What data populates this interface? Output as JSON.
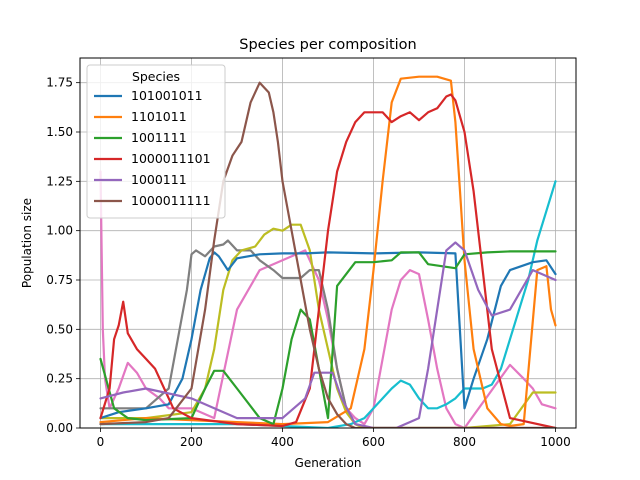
{
  "chart_data": {
    "type": "line",
    "title": "Species per composition",
    "xlabel": "Generation",
    "ylabel": "Population size",
    "xlim": [
      -45,
      1045
    ],
    "ylim": [
      0,
      1.875
    ],
    "xticks": [
      0,
      200,
      400,
      600,
      800,
      1000
    ],
    "xtick_labels": [
      "0",
      "200",
      "400",
      "600",
      "800",
      "1000"
    ],
    "yticks": [
      0,
      0.25,
      0.5,
      0.75,
      1.0,
      1.25,
      1.5,
      1.75
    ],
    "ytick_labels": [
      "0.00",
      "0.25",
      "0.50",
      "0.75",
      "1.00",
      "1.25",
      "1.50",
      "1.75"
    ],
    "grid": true,
    "legend": {
      "title": "Species",
      "position": "upper-left"
    },
    "series": [
      {
        "name": "101001011",
        "color": "#1f77b4",
        "in_legend": true,
        "x": [
          0,
          40,
          100,
          150,
          180,
          200,
          220,
          240,
          250,
          260,
          280,
          300,
          350,
          400,
          450,
          500,
          600,
          700,
          780,
          800,
          820,
          850,
          880,
          900,
          950,
          980,
          1000
        ],
        "y": [
          0.05,
          0.08,
          0.1,
          0.12,
          0.25,
          0.45,
          0.7,
          0.86,
          0.89,
          0.87,
          0.8,
          0.86,
          0.88,
          0.885,
          0.885,
          0.89,
          0.885,
          0.89,
          0.885,
          0.1,
          0.25,
          0.45,
          0.72,
          0.8,
          0.84,
          0.85,
          0.78
        ]
      },
      {
        "name": "1101011",
        "color": "#ff7f0e",
        "in_legend": true,
        "x": [
          0,
          100,
          200,
          300,
          400,
          500,
          550,
          580,
          600,
          620,
          640,
          660,
          700,
          740,
          770,
          780,
          790,
          800,
          820,
          850,
          880,
          900,
          930,
          960,
          980,
          990,
          1000
        ],
        "y": [
          0.03,
          0.05,
          0.04,
          0.03,
          0.02,
          0.03,
          0.1,
          0.4,
          0.8,
          1.25,
          1.65,
          1.77,
          1.78,
          1.78,
          1.76,
          1.55,
          1.2,
          0.85,
          0.4,
          0.1,
          0.02,
          0.01,
          0.02,
          0.8,
          0.82,
          0.6,
          0.52
        ]
      },
      {
        "name": "1001111",
        "color": "#2ca02c",
        "in_legend": true,
        "x": [
          0,
          30,
          60,
          100,
          200,
          230,
          250,
          270,
          300,
          350,
          380,
          400,
          420,
          440,
          460,
          480,
          500,
          520,
          560,
          600,
          640,
          660,
          700,
          720,
          750,
          780,
          800,
          850,
          900,
          950,
          1000
        ],
        "y": [
          0.35,
          0.1,
          0.05,
          0.04,
          0.05,
          0.2,
          0.29,
          0.29,
          0.2,
          0.05,
          0.02,
          0.2,
          0.45,
          0.6,
          0.55,
          0.3,
          0.05,
          0.72,
          0.84,
          0.84,
          0.85,
          0.89,
          0.89,
          0.83,
          0.82,
          0.81,
          0.88,
          0.89,
          0.895,
          0.895,
          0.895
        ]
      },
      {
        "name": "1000011101",
        "color": "#d62728",
        "in_legend": true,
        "x": [
          0,
          20,
          30,
          40,
          50,
          60,
          80,
          100,
          120,
          140,
          160,
          200,
          300,
          400,
          430,
          460,
          480,
          500,
          520,
          540,
          560,
          580,
          600,
          620,
          640,
          660,
          680,
          700,
          720,
          740,
          760,
          770,
          780,
          800,
          820,
          840,
          860,
          900,
          1000
        ],
        "y": [
          0.05,
          0.2,
          0.45,
          0.52,
          0.64,
          0.48,
          0.4,
          0.35,
          0.3,
          0.2,
          0.1,
          0.05,
          0.02,
          0.01,
          0.03,
          0.2,
          0.6,
          1.0,
          1.3,
          1.45,
          1.55,
          1.6,
          1.6,
          1.6,
          1.55,
          1.58,
          1.6,
          1.56,
          1.6,
          1.62,
          1.68,
          1.69,
          1.66,
          1.5,
          1.2,
          0.8,
          0.4,
          0.05,
          0.0
        ]
      },
      {
        "name": "1000111",
        "color": "#9467bd",
        "in_legend": true,
        "x": [
          0,
          50,
          100,
          200,
          300,
          400,
          450,
          470,
          490,
          510,
          530,
          560,
          600,
          650,
          700,
          720,
          740,
          760,
          780,
          800,
          830,
          860,
          900,
          950,
          1000
        ],
        "y": [
          0.15,
          0.18,
          0.2,
          0.15,
          0.05,
          0.05,
          0.15,
          0.28,
          0.28,
          0.28,
          0.15,
          0.02,
          0.0,
          0.0,
          0.05,
          0.3,
          0.6,
          0.9,
          0.94,
          0.9,
          0.7,
          0.57,
          0.6,
          0.8,
          0.75
        ]
      },
      {
        "name": "1000011111",
        "color": "#8c564b",
        "in_legend": true,
        "x": [
          0,
          100,
          150,
          200,
          230,
          250,
          270,
          290,
          310,
          330,
          350,
          370,
          380,
          390,
          400,
          420,
          440,
          460,
          480,
          500,
          520,
          540,
          560,
          580,
          600,
          650,
          700,
          800,
          900,
          1000
        ],
        "y": [
          0.02,
          0.03,
          0.05,
          0.2,
          0.6,
          0.95,
          1.25,
          1.38,
          1.45,
          1.65,
          1.75,
          1.7,
          1.6,
          1.45,
          1.25,
          1.0,
          0.75,
          0.5,
          0.3,
          0.15,
          0.07,
          0.02,
          0.0,
          0.0,
          0.0,
          0.0,
          0.0,
          0.0,
          0.0,
          0.0
        ]
      },
      {
        "name": "",
        "color": "#e377c2",
        "in_legend": false,
        "x": [
          0,
          5,
          10,
          20,
          40,
          60,
          80,
          100,
          130,
          150,
          200,
          250,
          300,
          350,
          400,
          450,
          480,
          500,
          520,
          540,
          560,
          580,
          600,
          620,
          640,
          660,
          680,
          700,
          720,
          740,
          760,
          780,
          800,
          900,
          930,
          950,
          970,
          1000
        ],
        "y": [
          1.3,
          0.5,
          0.25,
          0.1,
          0.2,
          0.33,
          0.28,
          0.2,
          0.15,
          0.1,
          0.1,
          0.05,
          0.6,
          0.8,
          0.85,
          0.9,
          0.75,
          0.55,
          0.3,
          0.1,
          0.05,
          0.02,
          0.1,
          0.35,
          0.6,
          0.75,
          0.8,
          0.78,
          0.55,
          0.3,
          0.1,
          0.02,
          0.0,
          0.32,
          0.25,
          0.2,
          0.12,
          0.1
        ]
      },
      {
        "name": "",
        "color": "#7f7f7f",
        "in_legend": false,
        "x": [
          0,
          100,
          150,
          170,
          190,
          200,
          210,
          230,
          250,
          270,
          280,
          300,
          330,
          350,
          380,
          400,
          420,
          440,
          460,
          480,
          500,
          520,
          540,
          560,
          580,
          600,
          700,
          800,
          900,
          1000
        ],
        "y": [
          0.1,
          0.1,
          0.2,
          0.45,
          0.7,
          0.88,
          0.9,
          0.87,
          0.92,
          0.93,
          0.95,
          0.9,
          0.9,
          0.85,
          0.8,
          0.76,
          0.76,
          0.76,
          0.8,
          0.8,
          0.6,
          0.3,
          0.1,
          0.02,
          0.0,
          0.0,
          0.0,
          0.0,
          0.0,
          0.0
        ]
      },
      {
        "name": "",
        "color": "#bcbd22",
        "in_legend": false,
        "x": [
          0,
          100,
          200,
          230,
          250,
          270,
          290,
          310,
          340,
          360,
          380,
          400,
          420,
          440,
          460,
          480,
          500,
          520,
          540,
          560,
          580,
          600,
          700,
          800,
          900,
          950,
          970,
          1000
        ],
        "y": [
          0.05,
          0.05,
          0.08,
          0.2,
          0.4,
          0.7,
          0.85,
          0.9,
          0.92,
          0.98,
          1.01,
          1.0,
          1.03,
          1.03,
          0.9,
          0.6,
          0.4,
          0.2,
          0.08,
          0.02,
          0.0,
          0.0,
          0.0,
          0.0,
          0.02,
          0.18,
          0.18,
          0.18
        ]
      },
      {
        "name": "",
        "color": "#17becf",
        "in_legend": false,
        "x": [
          0,
          100,
          200,
          300,
          400,
          500,
          550,
          580,
          600,
          620,
          640,
          660,
          680,
          700,
          720,
          740,
          760,
          780,
          800,
          820,
          840,
          860,
          880,
          900,
          920,
          940,
          960,
          980,
          1000
        ],
        "y": [
          0.02,
          0.02,
          0.02,
          0.02,
          0.01,
          0.0,
          0.02,
          0.05,
          0.1,
          0.15,
          0.2,
          0.24,
          0.22,
          0.15,
          0.1,
          0.1,
          0.12,
          0.15,
          0.2,
          0.2,
          0.2,
          0.22,
          0.3,
          0.45,
          0.6,
          0.75,
          0.95,
          1.1,
          1.25
        ]
      }
    ]
  }
}
